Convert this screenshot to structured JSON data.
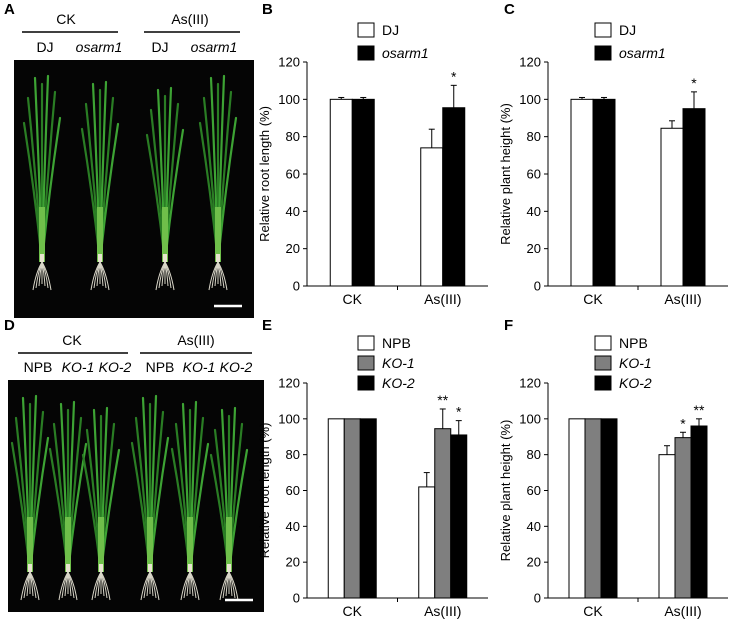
{
  "panels": {
    "A": {
      "letter": "A",
      "groups": [
        {
          "label": "CK",
          "genotypes": [
            "DJ",
            "osarm1"
          ]
        },
        {
          "label": "As(III)",
          "genotypes": [
            "DJ",
            "osarm1"
          ]
        }
      ],
      "photo": "rice seedlings on black background, four plants with roots"
    },
    "D": {
      "letter": "D",
      "groups": [
        {
          "label": "CK",
          "genotypes": [
            "NPB",
            "KO-1",
            "KO-2"
          ]
        },
        {
          "label": "As(III)",
          "genotypes": [
            "NPB",
            "KO-1",
            "KO-2"
          ]
        }
      ],
      "photo": "rice seedlings on black background, six plants with roots"
    }
  },
  "colors": {
    "white": "#ffffff",
    "gray": "#7f7f7f",
    "black": "#000000",
    "photo_bg": "#050505",
    "leaf": "#2f8f2a"
  },
  "chart_data": [
    {
      "panel": "B",
      "type": "bar",
      "categories": [
        "CK",
        "As(III)"
      ],
      "series": [
        {
          "name": "DJ",
          "color": "#ffffff",
          "values": [
            100,
            74
          ],
          "errors": [
            1,
            10
          ]
        },
        {
          "name": "osarm1",
          "color": "#000000",
          "values": [
            100,
            95.5
          ],
          "errors": [
            1,
            12
          ]
        }
      ],
      "significance": [
        {
          "category": "As(III)",
          "series": "osarm1",
          "mark": "*"
        }
      ],
      "ylabel": "Relative root length (%)",
      "ylim": [
        0,
        120
      ],
      "yticks": [
        0,
        20,
        40,
        60,
        80,
        100,
        120
      ],
      "legend": "top-left"
    },
    {
      "panel": "C",
      "type": "bar",
      "categories": [
        "CK",
        "As(III)"
      ],
      "series": [
        {
          "name": "DJ",
          "color": "#ffffff",
          "values": [
            100,
            84.5
          ],
          "errors": [
            1,
            4
          ]
        },
        {
          "name": "osarm1",
          "color": "#000000",
          "values": [
            100,
            95
          ],
          "errors": [
            1,
            9
          ]
        }
      ],
      "significance": [
        {
          "category": "As(III)",
          "series": "osarm1",
          "mark": "*"
        }
      ],
      "ylabel": "Relative plant height (%)",
      "ylim": [
        0,
        120
      ],
      "yticks": [
        0,
        20,
        40,
        60,
        80,
        100,
        120
      ],
      "legend": "top-left"
    },
    {
      "panel": "E",
      "type": "bar",
      "categories": [
        "CK",
        "As(III)"
      ],
      "series": [
        {
          "name": "NPB",
          "color": "#ffffff",
          "values": [
            100,
            62
          ],
          "errors": [
            0.5,
            8
          ]
        },
        {
          "name": "KO-1",
          "color": "#7f7f7f",
          "values": [
            100,
            94.5
          ],
          "errors": [
            0.5,
            11
          ]
        },
        {
          "name": "KO-2",
          "color": "#000000",
          "values": [
            100,
            91
          ],
          "errors": [
            0.5,
            8
          ]
        }
      ],
      "significance": [
        {
          "category": "As(III)",
          "series": "KO-1",
          "mark": "**"
        },
        {
          "category": "As(III)",
          "series": "KO-2",
          "mark": "*"
        }
      ],
      "ylabel": "Relative root length (%)",
      "ylim": [
        0,
        120
      ],
      "yticks": [
        0,
        20,
        40,
        60,
        80,
        100,
        120
      ],
      "legend": "top-left"
    },
    {
      "panel": "F",
      "type": "bar",
      "categories": [
        "CK",
        "As(III)"
      ],
      "series": [
        {
          "name": "NPB",
          "color": "#ffffff",
          "values": [
            100,
            80
          ],
          "errors": [
            0.5,
            5
          ]
        },
        {
          "name": "KO-1",
          "color": "#7f7f7f",
          "values": [
            100,
            89.5
          ],
          "errors": [
            0.5,
            3
          ]
        },
        {
          "name": "KO-2",
          "color": "#000000",
          "values": [
            100,
            96
          ],
          "errors": [
            0.5,
            4
          ]
        }
      ],
      "significance": [
        {
          "category": "As(III)",
          "series": "KO-1",
          "mark": "*"
        },
        {
          "category": "As(III)",
          "series": "KO-2",
          "mark": "**"
        }
      ],
      "ylabel": "Relative plant height (%)",
      "ylim": [
        0,
        120
      ],
      "yticks": [
        0,
        20,
        40,
        60,
        80,
        100,
        120
      ],
      "legend": "top-left"
    }
  ]
}
